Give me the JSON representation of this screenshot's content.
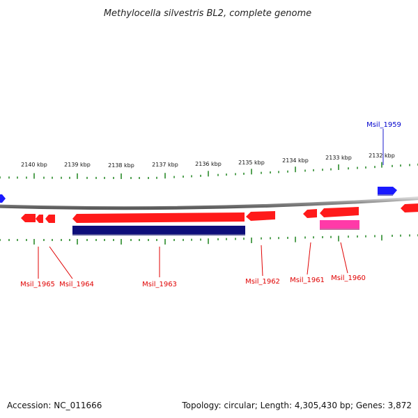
{
  "title": "Methylocella silvestris BL2, complete genome",
  "footer": {
    "accession": "Accession: NC_011666",
    "summary": "Topology: circular; Length: 4,305,430 bp; Genes: 3,872"
  },
  "colors": {
    "backbone": "#8a8a8a",
    "tick": "#2a8a2a",
    "gene_forward": "#1a1aff",
    "gene_reverse": "#ff1a1a",
    "cds_dark": "#0d0d7a",
    "rna_pink": "#ff3aa8",
    "label_reverse": "#e00000",
    "label_forward": "#0000cc"
  },
  "scale": {
    "unit": "kbp",
    "labels": [
      "2140 kbp",
      "2139 kbp",
      "2138 kbp",
      "2137 kbp",
      "2136 kbp",
      "2135 kbp",
      "2134 kbp",
      "2133 kbp",
      "2132 kbp"
    ]
  },
  "genes": [
    {
      "label": "Msil_1959",
      "strand": "forward"
    },
    {
      "label": "Msil_1960",
      "strand": "reverse"
    },
    {
      "label": "Msil_1961",
      "strand": "reverse"
    },
    {
      "label": "Msil_1962",
      "strand": "reverse"
    },
    {
      "label": "Msil_1963",
      "strand": "reverse"
    },
    {
      "label": "Msil_1964",
      "strand": "reverse"
    },
    {
      "label": "Msil_1965",
      "strand": "reverse"
    }
  ]
}
